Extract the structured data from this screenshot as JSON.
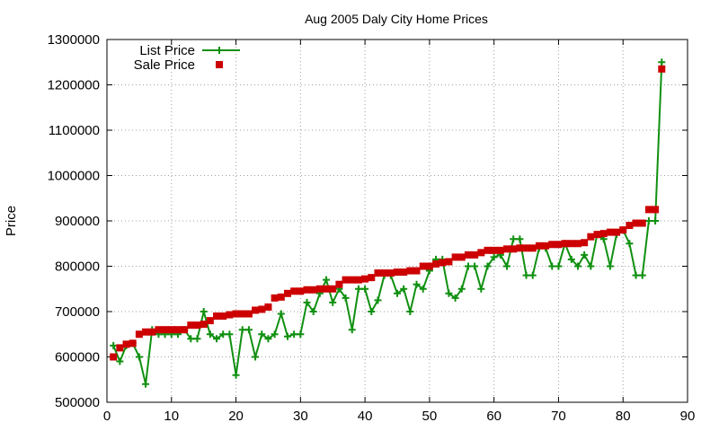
{
  "chart_data": {
    "type": "line",
    "title": "Aug 2005 Daly City Home Prices",
    "xlabel": "",
    "ylabel": "Price",
    "xlim": [
      0,
      90
    ],
    "ylim": [
      500000,
      1300000
    ],
    "x_ticks": [
      0,
      10,
      20,
      30,
      40,
      50,
      60,
      70,
      80,
      90
    ],
    "y_ticks": [
      500000,
      600000,
      700000,
      800000,
      900000,
      1000000,
      1100000,
      1200000,
      1300000
    ],
    "grid": true,
    "legend_position": "top-left",
    "series": [
      {
        "name": "List Price",
        "style": "line-with-plus-markers",
        "color": "#109010",
        "values": [
          625000,
          590000,
          625000,
          630000,
          600000,
          540000,
          660000,
          650000,
          650000,
          650000,
          650000,
          660000,
          640000,
          640000,
          700000,
          650000,
          640000,
          650000,
          650000,
          560000,
          660000,
          660000,
          600000,
          650000,
          640000,
          650000,
          695000,
          645000,
          650000,
          650000,
          720000,
          700000,
          740000,
          770000,
          720000,
          750000,
          730000,
          660000,
          750000,
          750000,
          700000,
          725000,
          780000,
          780000,
          740000,
          750000,
          700000,
          760000,
          750000,
          790000,
          815000,
          815000,
          740000,
          730000,
          750000,
          800000,
          800000,
          750000,
          800000,
          820000,
          825000,
          800000,
          860000,
          860000,
          780000,
          780000,
          840000,
          840000,
          800000,
          800000,
          850000,
          815000,
          800000,
          825000,
          800000,
          870000,
          860000,
          800000,
          870000,
          880000,
          850000,
          780000,
          780000,
          900000,
          900000,
          1250000
        ]
      },
      {
        "name": "Sale Price",
        "style": "square-markers",
        "color": "#cc0000",
        "values": [
          600000,
          620000,
          628000,
          630000,
          650000,
          655000,
          655000,
          660000,
          660000,
          660000,
          660000,
          660000,
          670000,
          670000,
          672000,
          680000,
          690000,
          690000,
          693000,
          695000,
          695000,
          695000,
          703000,
          705000,
          710000,
          730000,
          732000,
          740000,
          745000,
          745000,
          748000,
          748000,
          750000,
          750000,
          750000,
          760000,
          770000,
          770000,
          770000,
          772000,
          775000,
          785000,
          785000,
          785000,
          787000,
          787000,
          790000,
          790000,
          800000,
          800000,
          805000,
          808000,
          810000,
          820000,
          820000,
          825000,
          825000,
          830000,
          835000,
          835000,
          835000,
          838000,
          838000,
          840000,
          840000,
          840000,
          845000,
          845000,
          848000,
          848000,
          850000,
          850000,
          850000,
          852000,
          865000,
          870000,
          872000,
          875000,
          875000,
          880000,
          890000,
          895000,
          895000,
          925000,
          925000,
          1235000
        ]
      }
    ]
  }
}
